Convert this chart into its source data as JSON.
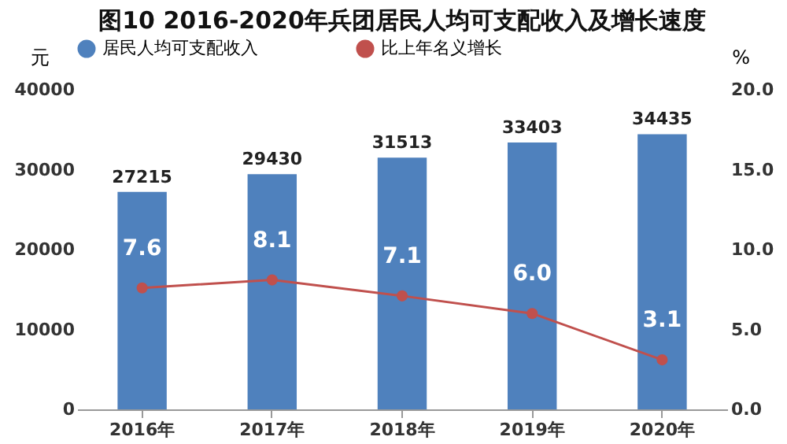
{
  "chart_data": {
    "type": "bar",
    "title": "图10 2016-2020年兵团居民人均可支配收入及增长速度",
    "ylabel": "元",
    "y2label": "%",
    "categories": [
      "2016年",
      "2017年",
      "2018年",
      "2019年",
      "2020年"
    ],
    "series": [
      {
        "name": "居民人均可支配收入",
        "color": "#4f81bd",
        "values": [
          27215,
          29430,
          31513,
          33403,
          34435
        ],
        "value_labels": [
          "27215",
          "29430",
          "31513",
          "33403",
          "34435"
        ]
      },
      {
        "name": "比上年名义增长",
        "type": "line",
        "axis": "y2",
        "color": "#c0504d",
        "marker": "circle",
        "line_style": "solid",
        "values": [
          7.6,
          8.1,
          7.1,
          6.0,
          3.1
        ],
        "value_labels": [
          "7.6",
          "8.1",
          "7.1",
          "6.0",
          "3.1"
        ]
      }
    ],
    "ylim": [
      0,
      40000
    ],
    "yticks": [
      0,
      10000,
      20000,
      30000,
      40000
    ],
    "y2lim": [
      0,
      20
    ],
    "y2ticks": [
      {
        "value": 0,
        "label": "0.0"
      },
      {
        "value": 5,
        "label": "5.0"
      },
      {
        "value": 10,
        "label": "10.0"
      },
      {
        "value": 15,
        "label": "15.0"
      },
      {
        "value": 20,
        "label": "20.0"
      }
    ],
    "legend": "top",
    "grid": false
  }
}
